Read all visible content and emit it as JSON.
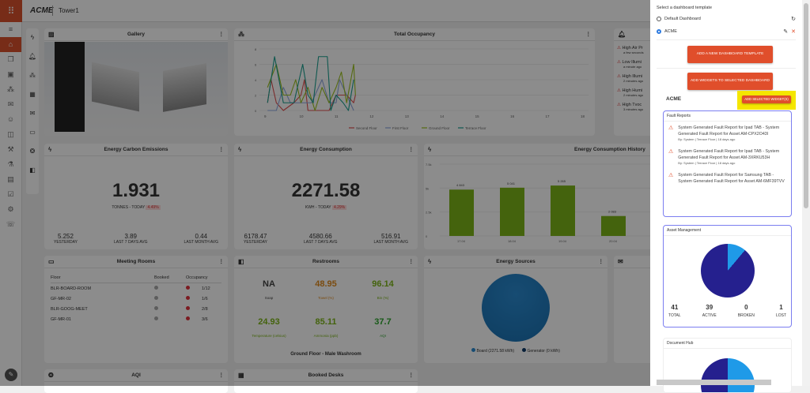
{
  "header": {
    "brand": "ACME",
    "site": "Tower1"
  },
  "sidebar": {
    "items": [
      "home",
      "layers",
      "tablet",
      "occupancy",
      "feedback",
      "visitor",
      "workspace",
      "tools",
      "lab",
      "ticket",
      "check",
      "settings",
      "support"
    ]
  },
  "widgets": {
    "gallery": {
      "title": "Gallery"
    },
    "occupancy": {
      "title": "Total Occupancy"
    },
    "alerts": {
      "items": [
        {
          "title": "High Air Pr",
          "time": "a few seconds"
        },
        {
          "title": "Low Illumi",
          "time": "a minute ago"
        },
        {
          "title": "High Illumi",
          "time": "2 minutes ago"
        },
        {
          "title": "High Humi",
          "time": "2 minutes ago"
        },
        {
          "title": "High Tvoc",
          "time": "3 minutes ago"
        }
      ]
    },
    "carbon": {
      "title": "Energy Carbon Emissions",
      "value": "1.931",
      "unit": "TONNES - TODAY",
      "change": "4.49%",
      "stats": [
        {
          "v": "5.252",
          "l": "YESTERDAY"
        },
        {
          "v": "3.89",
          "l": "LAST 7 DAYS AVG"
        },
        {
          "v": "0.44",
          "l": "LAST MONTH AVG"
        }
      ]
    },
    "consumption": {
      "title": "Energy Consumption",
      "value": "2271.58",
      "unit": "KWH - TODAY",
      "change": "4.29%",
      "stats": [
        {
          "v": "6178.47",
          "l": "YESTERDAY"
        },
        {
          "v": "4580.66",
          "l": "LAST 7 DAYS AVG"
        },
        {
          "v": "516.91",
          "l": "LAST MONTH AVG"
        }
      ]
    },
    "history": {
      "title": "Energy Consumption History"
    },
    "meeting": {
      "title": "Meeting Rooms",
      "cols": [
        "Floor",
        "Booked",
        "Occupancy"
      ],
      "rows": [
        {
          "name": "BLR-BOARD-ROOM",
          "occ": "1/12"
        },
        {
          "name": "GF-MR-02",
          "occ": "1/6"
        },
        {
          "name": "BLR-GOOG-MEET",
          "occ": "2/8"
        },
        {
          "name": "GF-MR-01",
          "occ": "3/6"
        }
      ]
    },
    "restrooms": {
      "title": "Restrooms",
      "items": [
        {
          "v": "NA",
          "l": "Soap",
          "c": "#444"
        },
        {
          "v": "48.95",
          "l": "Towel (%)",
          "c": "#e08a1e"
        },
        {
          "v": "96.14",
          "l": "Bin (%)",
          "c": "#7cb518"
        },
        {
          "v": "24.93",
          "l": "Temperature (celsius)",
          "c": "#7cb518"
        },
        {
          "v": "85.11",
          "l": "Ammonia (ppb)",
          "c": "#7cb518"
        },
        {
          "v": "37.7",
          "l": "AQI",
          "c": "#2ea52e"
        }
      ],
      "location": "Ground Floor - Male Washroom"
    },
    "sources": {
      "title": "Energy Sources",
      "legend": [
        "Board (2271.58 kWh)",
        "Generator (0 kWh)"
      ]
    },
    "aqi": {
      "title": "AQI"
    },
    "desks": {
      "title": "Booked Desks"
    }
  },
  "panel": {
    "heading": "Select a dashboard template",
    "templates": [
      {
        "label": "Default Dashboard",
        "selected": false
      },
      {
        "label": "ACME",
        "selected": true
      }
    ],
    "add_template": "ADD A NEW DASHBOARD TEMPLATE",
    "add_widgets": "ADD WIDGETS TO SELECTED DASHBOARD",
    "selected_name": "ACME",
    "add_selected": "ADD SELECTED WIDGET(S)",
    "highlight_color": "#f5e600",
    "fault": {
      "title": "Fault Reports",
      "items": [
        {
          "text": "System Generated Fault Report for Ipad TAB - System Generated Fault Report for Asset AM-CPX2O43I",
          "meta": "By: System | Terrace Floor | 18 days ago"
        },
        {
          "text": "System Generated Fault Report for Ipad TAB - System Generated Fault Report for Asset AM-3XRKU53H",
          "meta": "By: System | Terrace Floor | 18 days ago"
        },
        {
          "text": "System Generated Fault Report for Samsung TAB - System Generated Fault Report for Asset AM-6MF39TVV",
          "meta": ""
        }
      ]
    },
    "asset": {
      "title": "Asset Management",
      "stats": [
        {
          "v": "41",
          "l": "TOTAL"
        },
        {
          "v": "39",
          "l": "ACTIVE"
        },
        {
          "v": "0",
          "l": "BROKEN"
        },
        {
          "v": "1",
          "l": "LOST"
        }
      ]
    },
    "docs": {
      "title": "Document Hub"
    }
  },
  "chart_data": [
    {
      "type": "line",
      "title": "Total Occupancy",
      "x_ticks": [
        "9",
        "10",
        "11",
        "12",
        "13",
        "14",
        "15",
        "16",
        "17",
        "18"
      ],
      "y_ticks": [
        "0",
        "2",
        "4",
        "6",
        "8"
      ],
      "ylim": [
        0,
        8
      ],
      "series": [
        {
          "name": "Second Floor",
          "color": "#e05050",
          "x": [
            9.05,
            9.15,
            9.3,
            9.5,
            9.8,
            10.0,
            10.1,
            10.2,
            10.4,
            10.8,
            11.0,
            11.3,
            11.5,
            11.55
          ],
          "y": [
            1,
            4,
            1,
            0,
            1,
            2,
            4,
            0,
            0,
            0,
            2,
            2,
            1,
            2
          ]
        },
        {
          "name": "First Floor",
          "color": "#8fa8e0",
          "x": [
            9.05,
            9.3,
            9.5,
            9.7,
            10.0,
            10.3,
            10.6,
            10.8,
            11.0,
            11.1,
            11.3,
            11.5
          ],
          "y": [
            0,
            0,
            3,
            1,
            1,
            1,
            4,
            1,
            1,
            4,
            2,
            0
          ]
        },
        {
          "name": "Ground Floor",
          "color": "#9cc21e",
          "x": [
            9.05,
            9.3,
            9.5,
            9.7,
            9.85,
            10.0,
            10.2,
            10.4,
            10.6,
            10.8,
            11.0,
            11.15,
            11.3,
            11.5,
            11.55
          ],
          "y": [
            3,
            6,
            2,
            2,
            4,
            1,
            3,
            0,
            3,
            1,
            3,
            5,
            1,
            6,
            2
          ]
        },
        {
          "name": "Terrace Floor",
          "color": "#1aa090",
          "x": [
            9.05,
            9.25,
            9.5,
            9.8,
            10.05,
            10.2,
            10.35,
            10.5,
            10.75,
            10.85,
            11.0,
            11.2,
            11.35,
            11.5
          ],
          "y": [
            1,
            7,
            1,
            1,
            6,
            2,
            1,
            7,
            7,
            0,
            2,
            1,
            0,
            4
          ]
        }
      ]
    },
    {
      "type": "bar",
      "title": "Energy Consumption History",
      "categories": [
        "17.04",
        "18.04",
        "19.04",
        "20.04"
      ],
      "values": [
        4843,
        5041,
        5265,
        2083
      ],
      "labels": [
        "4 843",
        "5 041",
        "5 265",
        "2 083"
      ],
      "y_ticks": [
        "0",
        "2.5k",
        "5k",
        "7.5k"
      ],
      "ylim": [
        0,
        7500
      ],
      "legend": "Energy Consumption(kWh)",
      "color": "#7cb518"
    },
    {
      "type": "pie",
      "title": "Energy Sources",
      "categories": [
        "Board (2271.58 kWh)",
        "Generator (0 kWh)"
      ],
      "values": [
        2271.58,
        0
      ],
      "colors": [
        "#1a78b8",
        "#0e3a66"
      ]
    }
  ]
}
